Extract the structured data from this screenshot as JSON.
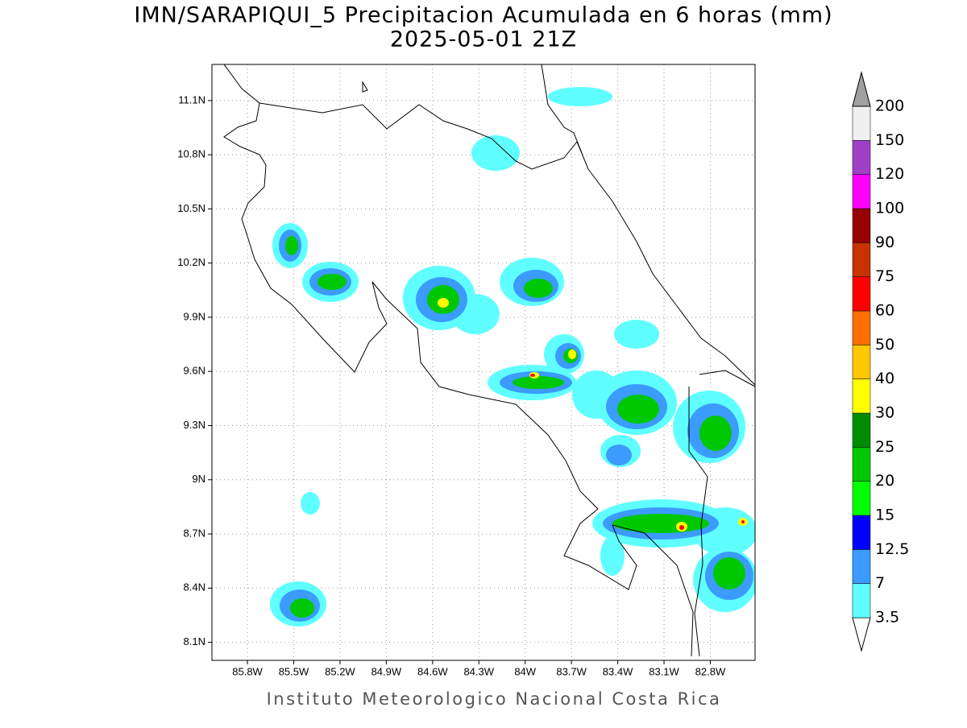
{
  "title": "IMN/SARAPIQUI_5 Precipitacion Acumulada en 6 horas (mm)",
  "subtitle": "2025-05-01 21Z",
  "footer": "Instituto Meteorologico Nacional Costa Rica",
  "map": {
    "xlim": [
      -86.03,
      -82.51
    ],
    "ylim": [
      8.0,
      11.3
    ],
    "xticks": [
      {
        "value": -85.8,
        "label": "85.8W"
      },
      {
        "value": -85.5,
        "label": "85.5W"
      },
      {
        "value": -85.2,
        "label": "85.2W"
      },
      {
        "value": -84.9,
        "label": "84.9W"
      },
      {
        "value": -84.6,
        "label": "84.6W"
      },
      {
        "value": -84.3,
        "label": "84.3W"
      },
      {
        "value": -84,
        "label": "84W"
      },
      {
        "value": -83.7,
        "label": "83.7W"
      },
      {
        "value": -83.4,
        "label": "83.4W"
      },
      {
        "value": -83.1,
        "label": "83.1W"
      },
      {
        "value": -82.8,
        "label": "82.8W"
      }
    ],
    "yticks": [
      {
        "value": 8.1,
        "label": "8.1N"
      },
      {
        "value": 8.4,
        "label": "8.4N"
      },
      {
        "value": 8.7,
        "label": "8.7N"
      },
      {
        "value": 9,
        "label": "9N"
      },
      {
        "value": 9.3,
        "label": "9.3N"
      },
      {
        "value": 9.6,
        "label": "9.6N"
      },
      {
        "value": 9.9,
        "label": "9.9N"
      },
      {
        "value": 10.2,
        "label": "10.2N"
      },
      {
        "value": 10.5,
        "label": "10.5N"
      },
      {
        "value": 10.8,
        "label": "10.8N"
      },
      {
        "value": 11.1,
        "label": "11.1N"
      }
    ],
    "grid": true
  },
  "colorbar": {
    "levels": [
      3.5,
      7,
      12.5,
      15,
      20,
      25,
      30,
      40,
      50,
      60,
      75,
      90,
      100,
      120,
      150,
      200
    ],
    "colors": [
      "#ffffff",
      "#60ffff",
      "#3c9bff",
      "#0000ff",
      "#00ff00",
      "#00c800",
      "#008c00",
      "#ffff00",
      "#ffc800",
      "#ff6e00",
      "#ff0000",
      "#c83200",
      "#960000",
      "#ff00ff",
      "#a040c8",
      "#f0f0f0",
      "#a0a0a0"
    ]
  }
}
